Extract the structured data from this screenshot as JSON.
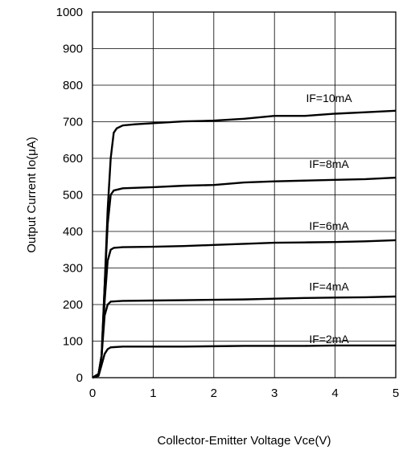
{
  "chart_data": {
    "type": "line",
    "title": "",
    "xlabel": "Collector-Emitter Voltage Vce(V)",
    "ylabel_prefix": "Output Current Io(",
    "ylabel_mu": "μ",
    "ylabel_suffix": "A)",
    "xlim": [
      0,
      5
    ],
    "ylim": [
      0,
      1000
    ],
    "xticks": [
      0,
      1,
      2,
      3,
      4,
      5
    ],
    "yticks": [
      0,
      100,
      200,
      300,
      400,
      500,
      600,
      700,
      800,
      900,
      1000
    ],
    "grid": true,
    "line_color": "#000000",
    "series": [
      {
        "name": "IF=10mA",
        "label_at": [
          3.9,
          765
        ],
        "points": [
          [
            0,
            0
          ],
          [
            0.1,
            10
          ],
          [
            0.15,
            60
          ],
          [
            0.2,
            250
          ],
          [
            0.25,
            460
          ],
          [
            0.3,
            600
          ],
          [
            0.35,
            670
          ],
          [
            0.4,
            682
          ],
          [
            0.5,
            690
          ],
          [
            0.7,
            693
          ],
          [
            1.0,
            696
          ],
          [
            1.5,
            701
          ],
          [
            2.0,
            703
          ],
          [
            2.5,
            708
          ],
          [
            3.0,
            716
          ],
          [
            3.5,
            716
          ],
          [
            4.0,
            722
          ],
          [
            4.5,
            726
          ],
          [
            5.0,
            730
          ]
        ]
      },
      {
        "name": "IF=8mA",
        "label_at": [
          3.9,
          585
        ],
        "points": [
          [
            0,
            0
          ],
          [
            0.1,
            10
          ],
          [
            0.15,
            60
          ],
          [
            0.2,
            250
          ],
          [
            0.25,
            420
          ],
          [
            0.3,
            500
          ],
          [
            0.35,
            512
          ],
          [
            0.5,
            518
          ],
          [
            1.0,
            521
          ],
          [
            1.5,
            525
          ],
          [
            2.0,
            527
          ],
          [
            2.5,
            534
          ],
          [
            3.0,
            537
          ],
          [
            3.5,
            539
          ],
          [
            4.0,
            541
          ],
          [
            4.5,
            543
          ],
          [
            5.0,
            547
          ]
        ]
      },
      {
        "name": "IF=6mA",
        "label_at": [
          3.9,
          415
        ],
        "points": [
          [
            0,
            0
          ],
          [
            0.1,
            10
          ],
          [
            0.15,
            60
          ],
          [
            0.2,
            210
          ],
          [
            0.25,
            320
          ],
          [
            0.3,
            350
          ],
          [
            0.35,
            355
          ],
          [
            0.5,
            357
          ],
          [
            1.0,
            358
          ],
          [
            1.5,
            360
          ],
          [
            2.0,
            363
          ],
          [
            2.5,
            366
          ],
          [
            3.0,
            369
          ],
          [
            3.5,
            370
          ],
          [
            4.0,
            371
          ],
          [
            4.5,
            373
          ],
          [
            5.0,
            376
          ]
        ]
      },
      {
        "name": "IF=4mA",
        "label_at": [
          3.9,
          250
        ],
        "points": [
          [
            0,
            0
          ],
          [
            0.1,
            10
          ],
          [
            0.15,
            60
          ],
          [
            0.2,
            170
          ],
          [
            0.25,
            200
          ],
          [
            0.3,
            208
          ],
          [
            0.5,
            210
          ],
          [
            1.0,
            211
          ],
          [
            1.5,
            212
          ],
          [
            2.0,
            213
          ],
          [
            2.5,
            214
          ],
          [
            3.0,
            216
          ],
          [
            3.5,
            218
          ],
          [
            4.0,
            219
          ],
          [
            4.5,
            220
          ],
          [
            5.0,
            222
          ]
        ]
      },
      {
        "name": "IF=2mA",
        "label_at": [
          3.9,
          105
        ],
        "points": [
          [
            0,
            0
          ],
          [
            0.1,
            5
          ],
          [
            0.15,
            35
          ],
          [
            0.2,
            65
          ],
          [
            0.25,
            78
          ],
          [
            0.3,
            83
          ],
          [
            0.5,
            85
          ],
          [
            1.0,
            85
          ],
          [
            1.5,
            85
          ],
          [
            2.0,
            86
          ],
          [
            2.5,
            87
          ],
          [
            3.0,
            87
          ],
          [
            3.5,
            87
          ],
          [
            4.0,
            88
          ],
          [
            4.5,
            88
          ],
          [
            5.0,
            88
          ]
        ]
      }
    ]
  }
}
